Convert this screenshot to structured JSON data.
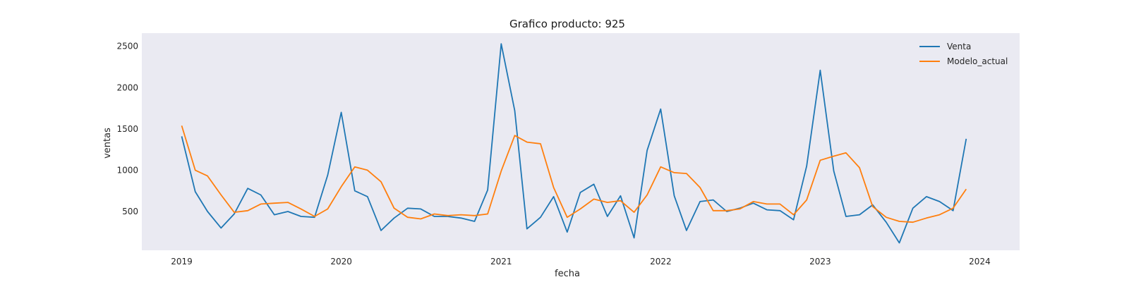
{
  "chart_data": {
    "type": "line",
    "title": "Grafico producto: 925",
    "xlabel": "fecha",
    "ylabel": "ventas",
    "x_start": "2019-01",
    "x_ticks": [
      "2019",
      "2020",
      "2021",
      "2022",
      "2023",
      "2024"
    ],
    "y_ticks": [
      500,
      1000,
      1500,
      2000,
      2500
    ],
    "ylim": [
      30,
      2660
    ],
    "grid": false,
    "background": "#eaeaf2",
    "legend_position": "top-right",
    "series": [
      {
        "name": "Venta",
        "color": "#1f77b4",
        "values": [
          1410,
          740,
          500,
          300,
          470,
          780,
          700,
          460,
          500,
          440,
          430,
          940,
          1700,
          750,
          680,
          270,
          420,
          540,
          530,
          440,
          440,
          420,
          380,
          760,
          2530,
          1720,
          290,
          430,
          680,
          250,
          730,
          830,
          440,
          690,
          180,
          1240,
          1740,
          690,
          270,
          620,
          640,
          500,
          540,
          600,
          520,
          510,
          400,
          1050,
          2210,
          990,
          440,
          460,
          580,
          370,
          120,
          540,
          680,
          620,
          510,
          1380
        ]
      },
      {
        "name": "Modelo_actual",
        "color": "#ff7f0e",
        "values": [
          1540,
          1000,
          930,
          700,
          490,
          510,
          590,
          600,
          610,
          530,
          440,
          530,
          800,
          1040,
          1000,
          860,
          540,
          430,
          410,
          470,
          450,
          460,
          450,
          470,
          990,
          1420,
          1340,
          1320,
          790,
          430,
          530,
          650,
          610,
          630,
          490,
          700,
          1040,
          970,
          960,
          790,
          510,
          510,
          530,
          620,
          590,
          590,
          460,
          640,
          1120,
          1170,
          1210,
          1030,
          560,
          430,
          380,
          370,
          420,
          460,
          540,
          770
        ]
      }
    ]
  }
}
